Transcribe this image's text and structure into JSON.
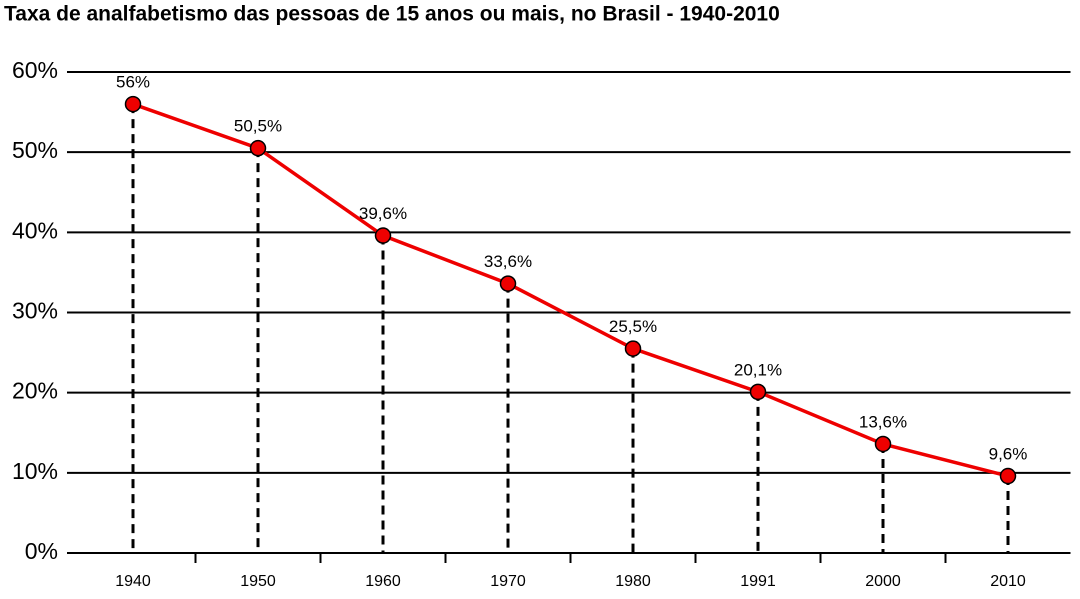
{
  "chart_data": {
    "type": "line",
    "title": "Taxa de analfabetismo das pessoas de 15 anos ou mais, no Brasil - 1940-2010",
    "categories": [
      "1940",
      "1950",
      "1960",
      "1970",
      "1980",
      "1991",
      "2000",
      "2010"
    ],
    "series": [
      {
        "name": "Taxa de analfabetismo",
        "color": "#ee0000",
        "values": [
          56,
          50.5,
          39.6,
          33.6,
          25.5,
          20.1,
          13.6,
          9.6
        ],
        "value_labels": [
          "56%",
          "50,5%",
          "39,6%",
          "33,6%",
          "25,5%",
          "20,1%",
          "13,6%",
          "9,6%"
        ]
      }
    ],
    "ylim": [
      0,
      60
    ],
    "yticks": [
      {
        "value": 0,
        "label": "0%"
      },
      {
        "value": 10,
        "label": "10%"
      },
      {
        "value": 20,
        "label": "20%"
      },
      {
        "value": 30,
        "label": "30%"
      },
      {
        "value": 40,
        "label": "40%"
      },
      {
        "value": 50,
        "label": "50%"
      },
      {
        "value": 60,
        "label": "60%"
      }
    ],
    "grid": true
  }
}
